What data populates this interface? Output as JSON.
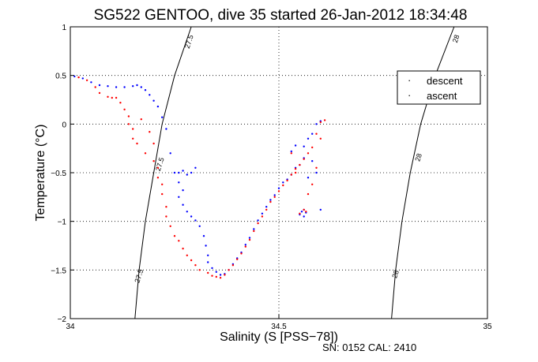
{
  "chart_data": {
    "type": "scatter",
    "title": "SG522 GENTOO, dive 35 started 26-Jan-2012 18:34:48",
    "xlabel": "Salinity (S [PSS−78])",
    "ylabel": "Temperature (°C)",
    "xlim": [
      34,
      35
    ],
    "ylim": [
      -2,
      1
    ],
    "xticks": [
      34,
      34.5,
      35
    ],
    "xtick_labels": [
      "34",
      "34.5",
      "35"
    ],
    "yticks": [
      -2,
      -1.5,
      -1,
      -0.5,
      0,
      0.5,
      1
    ],
    "ytick_labels": [
      "−2",
      "−1.5",
      "−1",
      "−0.5",
      "0",
      "0.5",
      "1"
    ],
    "grid": true,
    "legend_position": "top-right",
    "footer": "SN: 0152  CAL: 2410",
    "density_contours": [
      {
        "label": "27.5",
        "points": [
          [
            34.29,
            1.0
          ],
          [
            34.25,
            0.5
          ],
          [
            34.22,
            0.0
          ],
          [
            34.2,
            -0.5
          ],
          [
            34.18,
            -1.0
          ],
          [
            34.165,
            -1.5
          ],
          [
            34.155,
            -2.0
          ]
        ]
      },
      {
        "label": "28",
        "points": [
          [
            34.92,
            1.0
          ],
          [
            34.875,
            0.5
          ],
          [
            34.84,
            0.0
          ],
          [
            34.815,
            -0.5
          ],
          [
            34.795,
            -1.0
          ],
          [
            34.78,
            -1.5
          ],
          [
            34.77,
            -2.0
          ]
        ]
      }
    ],
    "contour_labels": [
      {
        "text": "27.5",
        "x": 34.29,
        "y": 0.84
      },
      {
        "text": "27.5",
        "x": 34.22,
        "y": -0.42
      },
      {
        "text": "27.5",
        "x": 34.17,
        "y": -1.57
      },
      {
        "text": "28",
        "x": 34.93,
        "y": 0.87
      },
      {
        "text": "28",
        "x": 34.84,
        "y": -0.35
      },
      {
        "text": "28",
        "x": 34.785,
        "y": -1.55
      }
    ],
    "series": [
      {
        "name": "descent",
        "color": "#0000ff",
        "points": [
          [
            34.01,
            0.49
          ],
          [
            34.03,
            0.47
          ],
          [
            34.05,
            0.43
          ],
          [
            34.07,
            0.4
          ],
          [
            34.09,
            0.39
          ],
          [
            34.11,
            0.38
          ],
          [
            34.13,
            0.38
          ],
          [
            34.15,
            0.39
          ],
          [
            34.16,
            0.4
          ],
          [
            34.17,
            0.38
          ],
          [
            34.18,
            0.35
          ],
          [
            34.19,
            0.3
          ],
          [
            34.2,
            0.24
          ],
          [
            34.21,
            0.18
          ],
          [
            34.22,
            0.07
          ],
          [
            34.23,
            -0.05
          ],
          [
            34.24,
            -0.3
          ],
          [
            34.25,
            -0.5
          ],
          [
            34.26,
            -0.5
          ],
          [
            34.27,
            -0.48
          ],
          [
            34.28,
            -0.52
          ],
          [
            34.29,
            -0.5
          ],
          [
            34.3,
            -0.45
          ],
          [
            34.26,
            -0.6
          ],
          [
            34.27,
            -0.68
          ],
          [
            34.26,
            -0.75
          ],
          [
            34.27,
            -0.83
          ],
          [
            34.28,
            -0.9
          ],
          [
            34.29,
            -0.95
          ],
          [
            34.3,
            -0.99
          ],
          [
            34.31,
            -1.05
          ],
          [
            34.32,
            -1.15
          ],
          [
            34.325,
            -1.25
          ],
          [
            34.33,
            -1.35
          ],
          [
            34.33,
            -1.42
          ],
          [
            34.34,
            -1.48
          ],
          [
            34.35,
            -1.52
          ],
          [
            34.36,
            -1.55
          ],
          [
            34.37,
            -1.54
          ],
          [
            34.38,
            -1.5
          ],
          [
            34.39,
            -1.44
          ],
          [
            34.4,
            -1.38
          ],
          [
            34.41,
            -1.32
          ],
          [
            34.42,
            -1.24
          ],
          [
            34.43,
            -1.17
          ],
          [
            34.44,
            -1.08
          ],
          [
            34.45,
            -0.99
          ],
          [
            34.46,
            -0.92
          ],
          [
            34.47,
            -0.85
          ],
          [
            34.48,
            -0.78
          ],
          [
            34.49,
            -0.73
          ],
          [
            34.5,
            -0.66
          ],
          [
            34.51,
            -0.6
          ],
          [
            34.52,
            -0.57
          ],
          [
            34.53,
            -0.52
          ],
          [
            34.54,
            -0.45
          ],
          [
            34.55,
            -0.42
          ],
          [
            34.56,
            -0.35
          ],
          [
            34.56,
            -0.23
          ],
          [
            34.57,
            -0.15
          ],
          [
            34.58,
            -0.1
          ],
          [
            34.59,
            0.0
          ],
          [
            34.6,
            0.03
          ],
          [
            34.58,
            -0.38
          ],
          [
            34.59,
            -0.5
          ],
          [
            34.57,
            -0.55
          ],
          [
            34.555,
            -0.9
          ],
          [
            34.56,
            -0.88
          ],
          [
            34.55,
            -0.93
          ],
          [
            34.565,
            -0.91
          ],
          [
            34.56,
            -0.95
          ],
          [
            34.6,
            -0.88
          ],
          [
            34.53,
            -0.28
          ],
          [
            34.54,
            -0.22
          ]
        ]
      },
      {
        "name": "ascent",
        "color": "#ff0000",
        "points": [
          [
            34.02,
            0.48
          ],
          [
            34.04,
            0.45
          ],
          [
            34.06,
            0.38
          ],
          [
            34.07,
            0.32
          ],
          [
            34.09,
            0.28
          ],
          [
            34.1,
            0.27
          ],
          [
            34.11,
            0.27
          ],
          [
            34.12,
            0.22
          ],
          [
            34.13,
            0.15
          ],
          [
            34.14,
            0.08
          ],
          [
            34.14,
            0.0
          ],
          [
            34.15,
            -0.05
          ],
          [
            34.15,
            -0.15
          ],
          [
            34.16,
            -0.2
          ],
          [
            34.18,
            -0.3
          ],
          [
            34.2,
            -0.38
          ],
          [
            34.21,
            -0.45
          ],
          [
            34.21,
            -0.55
          ],
          [
            34.22,
            -0.62
          ],
          [
            34.22,
            -0.72
          ],
          [
            34.23,
            -0.85
          ],
          [
            34.23,
            -0.95
          ],
          [
            34.24,
            -1.05
          ],
          [
            34.25,
            -1.15
          ],
          [
            34.26,
            -1.2
          ],
          [
            34.27,
            -1.28
          ],
          [
            34.28,
            -1.35
          ],
          [
            34.29,
            -1.4
          ],
          [
            34.3,
            -1.45
          ],
          [
            34.31,
            -1.5
          ],
          [
            34.33,
            -1.53
          ],
          [
            34.34,
            -1.56
          ],
          [
            34.35,
            -1.57
          ],
          [
            34.36,
            -1.58
          ],
          [
            34.37,
            -1.55
          ],
          [
            34.38,
            -1.5
          ],
          [
            34.39,
            -1.45
          ],
          [
            34.4,
            -1.39
          ],
          [
            34.41,
            -1.33
          ],
          [
            34.42,
            -1.26
          ],
          [
            34.43,
            -1.19
          ],
          [
            34.44,
            -1.1
          ],
          [
            34.45,
            -1.02
          ],
          [
            34.46,
            -0.95
          ],
          [
            34.47,
            -0.88
          ],
          [
            34.48,
            -0.8
          ],
          [
            34.49,
            -0.75
          ],
          [
            34.5,
            -0.69
          ],
          [
            34.51,
            -0.63
          ],
          [
            34.52,
            -0.58
          ],
          [
            34.53,
            -0.52
          ],
          [
            34.54,
            -0.46
          ],
          [
            34.55,
            -0.42
          ],
          [
            34.56,
            -0.36
          ],
          [
            34.57,
            -0.3
          ],
          [
            34.58,
            -0.24
          ],
          [
            34.59,
            -0.1
          ],
          [
            34.6,
            0.02
          ],
          [
            34.61,
            0.04
          ],
          [
            34.6,
            -0.15
          ],
          [
            34.59,
            -0.45
          ],
          [
            34.58,
            -0.62
          ],
          [
            34.57,
            -0.72
          ],
          [
            34.56,
            -0.88
          ],
          [
            34.565,
            -0.9
          ],
          [
            34.55,
            -0.92
          ],
          [
            34.54,
            -0.5
          ],
          [
            34.53,
            -0.3
          ],
          [
            34.2,
            -0.2
          ],
          [
            34.19,
            -0.08
          ],
          [
            34.17,
            0.05
          ]
        ]
      }
    ]
  }
}
